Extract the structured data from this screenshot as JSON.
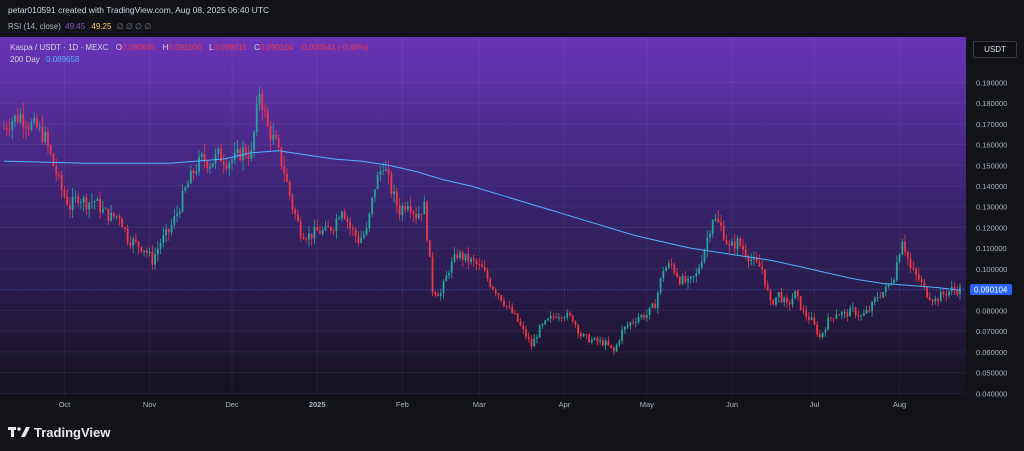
{
  "header": {
    "credit": "petar010591 created with TradingView.com, Aug 08, 2025 06:40 UTC",
    "rsi_label": "RSI (14, close)",
    "rsi_value_1": "49.45",
    "rsi_value_2": "49.25",
    "rsi_placeholders": "∅ ∅ ∅ ∅"
  },
  "legend": {
    "symbol": "Kaspa / USDT · 1D · MEXC",
    "open_label": "O",
    "open_value": "0.090645",
    "high_label": "H",
    "high_value": "0.091000",
    "low_label": "L",
    "low_value": "0.089015",
    "close_label": "C",
    "close_value": "0.090104",
    "change": "-0.000541 (-0.60%)",
    "ma_label": "200 Day",
    "ma_value": "0.089658"
  },
  "currency_badge": "USDT",
  "footer": {
    "brand": "TradingView"
  },
  "colors": {
    "up": "#26a69a",
    "down": "#f23645",
    "ma_line": "#4fb4ff",
    "last_price_tag": "#2962ff",
    "bg_top": "#6a34b8",
    "bg_bottom": "#15121f"
  },
  "chart_data": {
    "type": "candlestick",
    "symbol": "Kaspa / USDT",
    "interval": "1D",
    "exchange": "MEXC",
    "y_axis_labels": [
      "0.190000",
      "0.180000",
      "0.170000",
      "0.160000",
      "0.150000",
      "0.140000",
      "0.130000",
      "0.120000",
      "0.110000",
      "0.100000",
      "0.090000",
      "0.080000",
      "0.070000",
      "0.060000",
      "0.050000",
      "0.040000"
    ],
    "y_ticks": [
      0.19,
      0.18,
      0.17,
      0.16,
      0.15,
      0.14,
      0.13,
      0.12,
      0.11,
      0.1,
      0.09,
      0.08,
      0.07,
      0.06,
      0.05,
      0.04
    ],
    "ylim": [
      0.0397,
      0.1998
    ],
    "last_price": 0.090104,
    "last_price_label": "0.090104",
    "x_axis_labels": [
      "Oct",
      "Nov",
      "Dec",
      "2025",
      "Feb",
      "Mar",
      "Apr",
      "May",
      "Jun",
      "Jul",
      "Aug"
    ],
    "x_label_days": [
      22,
      53,
      83,
      114,
      145,
      173,
      204,
      234,
      265,
      295,
      326
    ],
    "day_range": [
      0,
      348
    ],
    "close_path": [
      [
        0,
        0.168
      ],
      [
        3,
        0.172
      ],
      [
        6,
        0.174
      ],
      [
        9,
        0.17
      ],
      [
        12,
        0.168
      ],
      [
        15,
        0.163
      ],
      [
        18,
        0.15
      ],
      [
        21,
        0.138
      ],
      [
        24,
        0.13
      ],
      [
        27,
        0.135
      ],
      [
        30,
        0.132
      ],
      [
        33,
        0.133
      ],
      [
        36,
        0.128
      ],
      [
        39,
        0.125
      ],
      [
        42,
        0.126
      ],
      [
        45,
        0.115
      ],
      [
        48,
        0.112
      ],
      [
        51,
        0.11
      ],
      [
        54,
        0.104
      ],
      [
        57,
        0.113
      ],
      [
        60,
        0.118
      ],
      [
        63,
        0.127
      ],
      [
        66,
        0.138
      ],
      [
        69,
        0.147
      ],
      [
        72,
        0.153
      ],
      [
        75,
        0.151
      ],
      [
        78,
        0.155
      ],
      [
        81,
        0.152
      ],
      [
        84,
        0.153
      ],
      [
        87,
        0.157
      ],
      [
        90,
        0.155
      ],
      [
        93,
        0.186
      ],
      [
        96,
        0.168
      ],
      [
        99,
        0.16
      ],
      [
        102,
        0.147
      ],
      [
        105,
        0.13
      ],
      [
        108,
        0.118
      ],
      [
        111,
        0.116
      ],
      [
        114,
        0.118
      ],
      [
        117,
        0.118
      ],
      [
        120,
        0.121
      ],
      [
        123,
        0.13
      ],
      [
        126,
        0.12
      ],
      [
        129,
        0.114
      ],
      [
        132,
        0.118
      ],
      [
        135,
        0.14
      ],
      [
        138,
        0.151
      ],
      [
        141,
        0.138
      ],
      [
        144,
        0.128
      ],
      [
        147,
        0.133
      ],
      [
        150,
        0.126
      ],
      [
        153,
        0.13
      ],
      [
        156,
        0.09
      ],
      [
        159,
        0.088
      ],
      [
        162,
        0.1
      ],
      [
        165,
        0.107
      ],
      [
        168,
        0.105
      ],
      [
        171,
        0.103
      ],
      [
        174,
        0.1
      ],
      [
        177,
        0.093
      ],
      [
        180,
        0.088
      ],
      [
        183,
        0.082
      ],
      [
        186,
        0.077
      ],
      [
        189,
        0.07
      ],
      [
        192,
        0.063
      ],
      [
        195,
        0.071
      ],
      [
        198,
        0.075
      ],
      [
        201,
        0.078
      ],
      [
        204,
        0.078
      ],
      [
        207,
        0.076
      ],
      [
        210,
        0.068
      ],
      [
        213,
        0.066
      ],
      [
        216,
        0.065
      ],
      [
        219,
        0.064
      ],
      [
        222,
        0.06
      ],
      [
        225,
        0.07
      ],
      [
        228,
        0.074
      ],
      [
        231,
        0.077
      ],
      [
        234,
        0.078
      ],
      [
        237,
        0.083
      ],
      [
        240,
        0.1
      ],
      [
        243,
        0.102
      ],
      [
        246,
        0.095
      ],
      [
        249,
        0.093
      ],
      [
        252,
        0.097
      ],
      [
        255,
        0.11
      ],
      [
        258,
        0.125
      ],
      [
        261,
        0.12
      ],
      [
        264,
        0.11
      ],
      [
        267,
        0.113
      ],
      [
        270,
        0.108
      ],
      [
        273,
        0.103
      ],
      [
        276,
        0.1
      ],
      [
        279,
        0.083
      ],
      [
        282,
        0.088
      ],
      [
        285,
        0.082
      ],
      [
        288,
        0.088
      ],
      [
        291,
        0.079
      ],
      [
        294,
        0.075
      ],
      [
        297,
        0.067
      ],
      [
        300,
        0.075
      ],
      [
        303,
        0.079
      ],
      [
        306,
        0.078
      ],
      [
        309,
        0.08
      ],
      [
        312,
        0.077
      ],
      [
        315,
        0.08
      ],
      [
        318,
        0.087
      ],
      [
        321,
        0.09
      ],
      [
        324,
        0.097
      ],
      [
        327,
        0.115
      ],
      [
        330,
        0.1
      ],
      [
        333,
        0.095
      ],
      [
        336,
        0.088
      ],
      [
        339,
        0.085
      ],
      [
        342,
        0.088
      ],
      [
        345,
        0.09
      ],
      [
        348,
        0.09
      ]
    ],
    "ma200_path": [
      [
        0,
        0.152
      ],
      [
        30,
        0.151
      ],
      [
        60,
        0.151
      ],
      [
        80,
        0.153
      ],
      [
        90,
        0.156
      ],
      [
        100,
        0.157
      ],
      [
        110,
        0.155
      ],
      [
        120,
        0.153
      ],
      [
        130,
        0.152
      ],
      [
        140,
        0.15
      ],
      [
        150,
        0.147
      ],
      [
        160,
        0.143
      ],
      [
        170,
        0.14
      ],
      [
        180,
        0.136
      ],
      [
        190,
        0.132
      ],
      [
        200,
        0.128
      ],
      [
        210,
        0.124
      ],
      [
        220,
        0.12
      ],
      [
        230,
        0.116
      ],
      [
        240,
        0.113
      ],
      [
        250,
        0.11
      ],
      [
        260,
        0.108
      ],
      [
        270,
        0.106
      ],
      [
        280,
        0.104
      ],
      [
        290,
        0.101
      ],
      [
        300,
        0.098
      ],
      [
        310,
        0.095
      ],
      [
        320,
        0.093
      ],
      [
        330,
        0.092
      ],
      [
        340,
        0.091
      ],
      [
        348,
        0.0897
      ]
    ]
  }
}
